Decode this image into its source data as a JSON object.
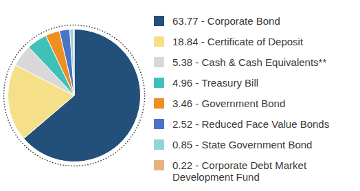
{
  "chart_data": {
    "type": "pie",
    "categories": [
      "63.77 - Corporate Bond",
      "18.84 - Certificate of Deposit",
      "5.38 - Cash & Cash Equivalents**",
      "4.96 - Treasury Bill",
      "3.46 - Government Bond",
      "2.52 - Reduced Face Value Bonds",
      "0.85 - State Government Bond",
      "0.22 - Corporate Debt Market Development Fund"
    ],
    "values": [
      63.77,
      18.84,
      5.38,
      4.96,
      3.46,
      2.52,
      0.85,
      0.22
    ],
    "colors": [
      "#234f7b",
      "#f5df88",
      "#d8d8d8",
      "#3fc1b9",
      "#ef8f22",
      "#4a74c6",
      "#92d4d7",
      "#e7b282"
    ],
    "legend": "right"
  }
}
